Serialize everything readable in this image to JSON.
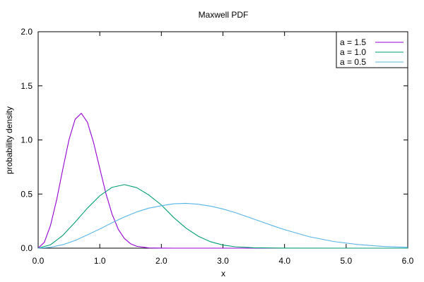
{
  "chart_data": {
    "type": "line",
    "title": "Maxwell PDF",
    "xlabel": "x",
    "ylabel": "probability density",
    "xlim": [
      0,
      6
    ],
    "ylim": [
      0,
      2
    ],
    "x_ticks": [
      "0.0",
      "1.0",
      "2.0",
      "3.0",
      "4.0",
      "5.0",
      "6.0"
    ],
    "y_ticks": [
      "0.0",
      "0.5",
      "1.0",
      "1.5",
      "2.0"
    ],
    "grid": false,
    "legend_position": "top-right",
    "series": [
      {
        "name": "a = 1.5",
        "color": "#9400d3",
        "x": [
          0,
          0.1,
          0.2,
          0.3,
          0.4,
          0.5,
          0.6,
          0.7,
          0.8,
          0.9,
          1.0,
          1.1,
          1.2,
          1.3,
          1.4,
          1.5,
          1.6,
          1.8,
          2.0,
          2.2,
          2.5,
          3.0,
          4.0,
          5.0,
          6.0
        ],
        "y": [
          0,
          0.054,
          0.209,
          0.446,
          0.73,
          1.001,
          1.191,
          1.246,
          1.163,
          0.975,
          0.738,
          0.505,
          0.314,
          0.175,
          0.089,
          0.041,
          0.017,
          0.0023,
          0.00023,
          2e-05,
          0.0,
          0.0,
          0.0,
          0.0,
          0.0
        ]
      },
      {
        "name": "a = 1.0",
        "color": "#009e73",
        "x": [
          0,
          0.2,
          0.4,
          0.6,
          0.8,
          1.0,
          1.2,
          1.4,
          1.6,
          1.8,
          2.0,
          2.2,
          2.4,
          2.6,
          2.8,
          3.0,
          3.2,
          3.5,
          4.0,
          5.0,
          6.0
        ],
        "y": [
          0,
          0.031,
          0.118,
          0.24,
          0.37,
          0.484,
          0.562,
          0.587,
          0.559,
          0.49,
          0.399,
          0.283,
          0.185,
          0.11,
          0.059,
          0.029,
          0.013,
          0.004,
          0.0003,
          0.0,
          0.0
        ]
      },
      {
        "name": "a = 0.5",
        "color": "#56b4e9",
        "x": [
          0,
          0.2,
          0.4,
          0.6,
          0.8,
          1.0,
          1.2,
          1.4,
          1.6,
          1.8,
          2.0,
          2.2,
          2.4,
          2.6,
          2.8,
          3.0,
          3.2,
          3.4,
          3.6,
          3.8,
          4.0,
          4.4,
          4.8,
          5.2,
          5.6,
          6.0
        ],
        "y": [
          0,
          0.008,
          0.032,
          0.071,
          0.123,
          0.177,
          0.235,
          0.288,
          0.335,
          0.37,
          0.392,
          0.41,
          0.414,
          0.406,
          0.388,
          0.362,
          0.328,
          0.289,
          0.249,
          0.209,
          0.171,
          0.106,
          0.061,
          0.033,
          0.016,
          0.008
        ]
      }
    ]
  }
}
